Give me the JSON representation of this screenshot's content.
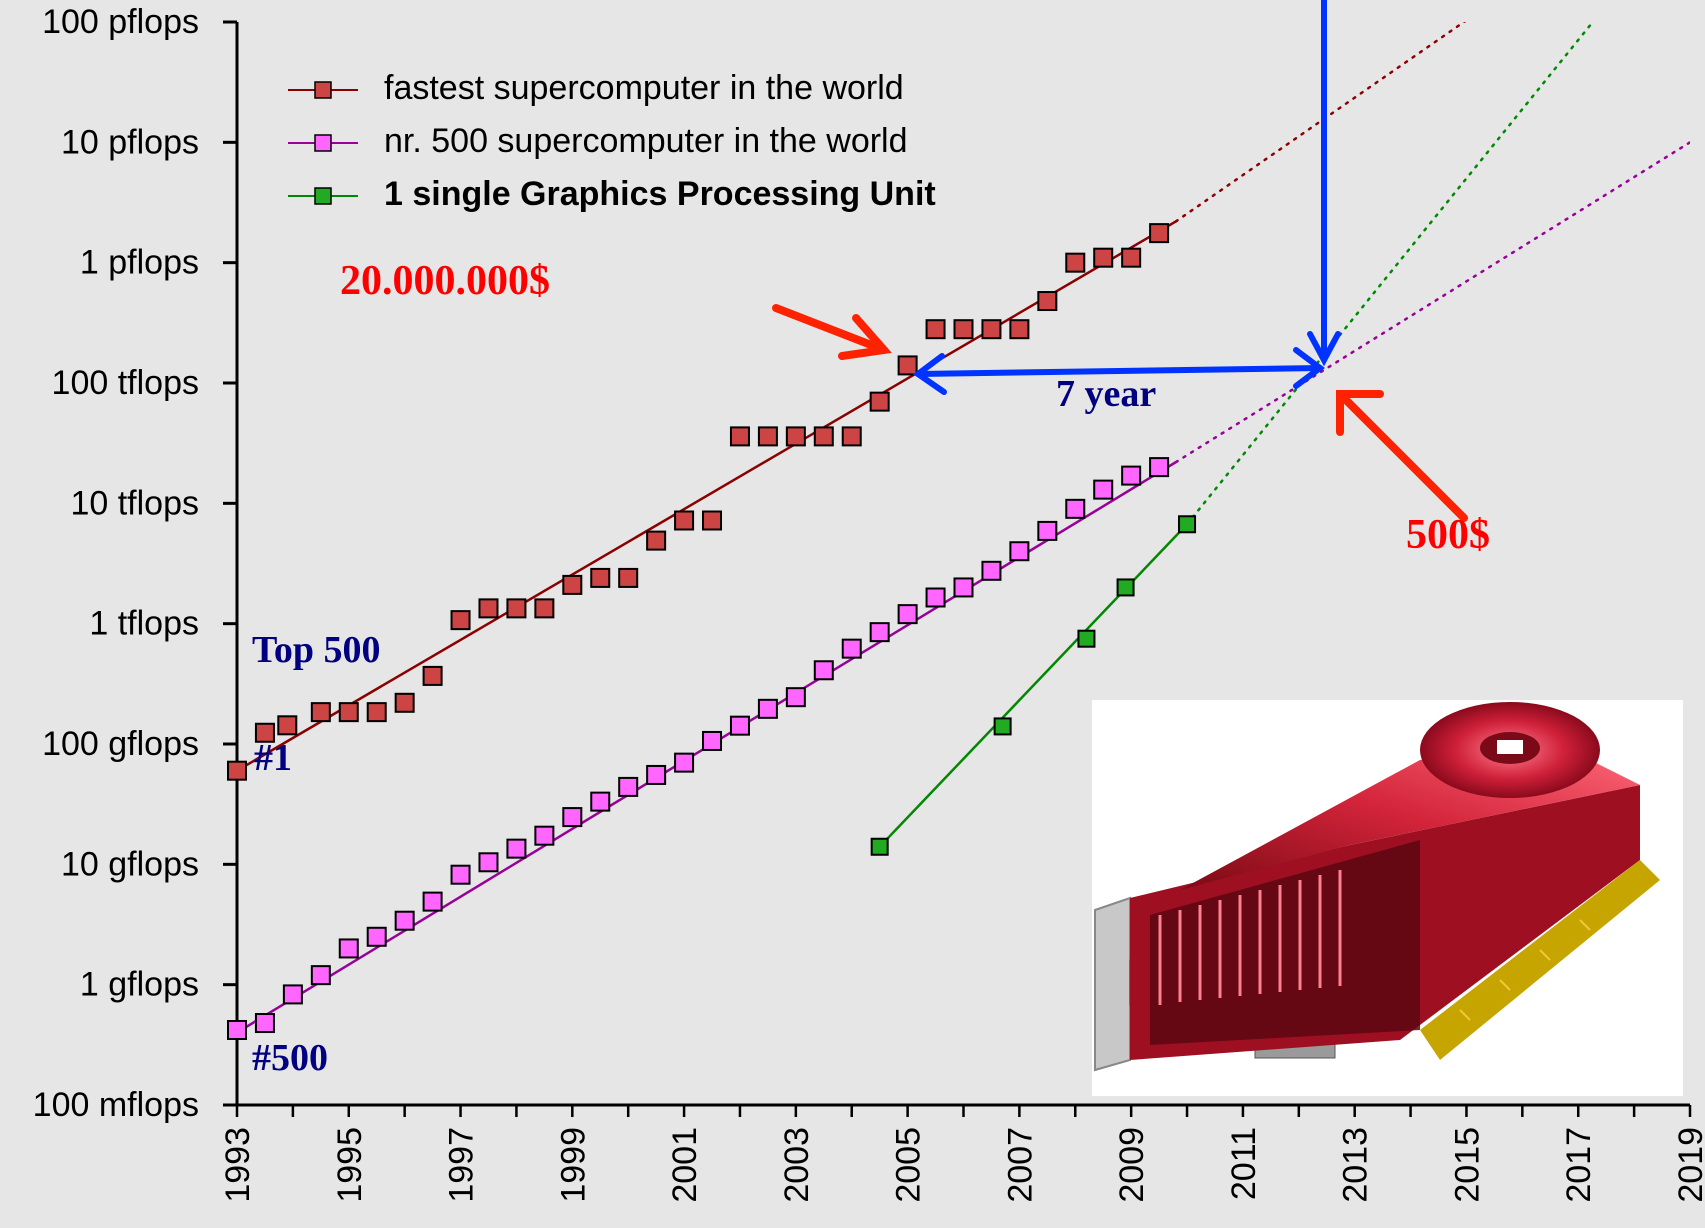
{
  "chart_data": {
    "type": "scatter",
    "title": "",
    "xlabel": "",
    "ylabel": "",
    "y_scale": "log10",
    "y_unit": "flops",
    "xlim": [
      1993,
      2019
    ],
    "ylim": [
      100000000.0,
      1e+17
    ],
    "x_ticks": [
      1993,
      1995,
      1997,
      1999,
      2001,
      2003,
      2005,
      2007,
      2009,
      2011,
      2013,
      2015,
      2017,
      2019
    ],
    "y_ticks": [
      {
        "value": 100000000.0,
        "label": "100 mflops"
      },
      {
        "value": 1000000000.0,
        "label": "1 gflops"
      },
      {
        "value": 10000000000.0,
        "label": "10 gflops"
      },
      {
        "value": 100000000000.0,
        "label": "100 gflops"
      },
      {
        "value": 1000000000000.0,
        "label": "1 tflops"
      },
      {
        "value": 10000000000000.0,
        "label": "10 tflops"
      },
      {
        "value": 100000000000000.0,
        "label": "100 tflops"
      },
      {
        "value": 1000000000000000.0,
        "label": "1 pflops"
      },
      {
        "value": 1e+16,
        "label": "10 pflops"
      },
      {
        "value": 1e+17,
        "label": "100 pflops"
      }
    ],
    "grid": false,
    "legend_position": "top-left",
    "series": [
      {
        "name": "fastest supercomputer in the world",
        "bold": false,
        "line_color": "#8b0000",
        "marker_color": "#cc4444",
        "fit": {
          "x": [
            1993,
            2009.8
          ],
          "y": [
            60000000000.0,
            2200000000000000.0
          ]
        },
        "extrapolation": {
          "x": [
            2009.8,
            2019
          ],
          "y": [
            2200000000000000.0,
            2e+18
          ]
        },
        "points": [
          [
            1993.0,
            60000000000.0
          ],
          [
            1993.5,
            124000000000.0
          ],
          [
            1993.9,
            143000000000.0
          ],
          [
            1994.5,
            184000000000.0
          ],
          [
            1995.0,
            184000000000.0
          ],
          [
            1995.5,
            184000000000.0
          ],
          [
            1996.0,
            220000000000.0
          ],
          [
            1996.5,
            368000000000.0
          ],
          [
            1997.0,
            1070000000000.0
          ],
          [
            1997.5,
            1340000000000.0
          ],
          [
            1998.0,
            1340000000000.0
          ],
          [
            1998.5,
            1340000000000.0
          ],
          [
            1999.0,
            2100000000000.0
          ],
          [
            1999.5,
            2400000000000.0
          ],
          [
            2000.0,
            2400000000000.0
          ],
          [
            2000.5,
            4900000000000.0
          ],
          [
            2001.0,
            7200000000000.0
          ],
          [
            2001.5,
            7200000000000.0
          ],
          [
            2002.0,
            36000000000000.0
          ],
          [
            2002.5,
            36000000000000.0
          ],
          [
            2003.0,
            36000000000000.0
          ],
          [
            2003.5,
            36000000000000.0
          ],
          [
            2004.0,
            36000000000000.0
          ],
          [
            2004.5,
            70000000000000.0
          ],
          [
            2005.0,
            140000000000000.0
          ],
          [
            2005.5,
            280000000000000.0
          ],
          [
            2006.0,
            280000000000000.0
          ],
          [
            2006.5,
            280000000000000.0
          ],
          [
            2007.0,
            280000000000000.0
          ],
          [
            2007.5,
            480000000000000.0
          ],
          [
            2008.0,
            1000000000000000.0
          ],
          [
            2008.5,
            1100000000000000.0
          ],
          [
            2009.0,
            1100000000000000.0
          ],
          [
            2009.5,
            1760000000000000.0
          ]
        ]
      },
      {
        "name": "nr. 500 supercomputer in the world",
        "bold": false,
        "line_color": "#990099",
        "marker_color": "#ff66ff",
        "fit": {
          "x": [
            1993,
            2009.8
          ],
          "y": [
            400000000.0,
            22000000000000.0
          ]
        },
        "extrapolation": {
          "x": [
            2009.8,
            2019
          ],
          "y": [
            22000000000000.0,
            1e+16
          ]
        },
        "points": [
          [
            1993.0,
            420000000.0
          ],
          [
            1993.5,
            480000000.0
          ],
          [
            1994.0,
            830000000.0
          ],
          [
            1994.5,
            1200000000.0
          ],
          [
            1995.0,
            2000000000.0
          ],
          [
            1995.5,
            2500000000.0
          ],
          [
            1996.0,
            3400000000.0
          ],
          [
            1996.5,
            4900000000.0
          ],
          [
            1997.0,
            8200000000.0
          ],
          [
            1997.5,
            10400000000.0
          ],
          [
            1998.0,
            13500000000.0
          ],
          [
            1998.5,
            17300000000.0
          ],
          [
            1999.0,
            24700000000.0
          ],
          [
            1999.5,
            33200000000.0
          ],
          [
            2000.0,
            44000000000.0
          ],
          [
            2000.5,
            55300000000.0
          ],
          [
            2001.0,
            70000000000.0
          ],
          [
            2001.5,
            106000000000.0
          ],
          [
            2002.0,
            142000000000.0
          ],
          [
            2002.5,
            196000000000.0
          ],
          [
            2003.0,
            245000000000.0
          ],
          [
            2003.5,
            410000000000.0
          ],
          [
            2004.0,
            620000000000.0
          ],
          [
            2004.5,
            850000000000.0
          ],
          [
            2005.0,
            1200000000000.0
          ],
          [
            2005.5,
            1650000000000.0
          ],
          [
            2006.0,
            2000000000000.0
          ],
          [
            2006.5,
            2750000000000.0
          ],
          [
            2007.0,
            4000000000000.0
          ],
          [
            2007.5,
            5900000000000.0
          ],
          [
            2008.0,
            9000000000000.0
          ],
          [
            2008.5,
            13000000000000.0
          ],
          [
            2009.0,
            17000000000000.0
          ],
          [
            2009.5,
            20000000000000.0
          ]
        ]
      },
      {
        "name": "1 single Graphics Processing Unit",
        "bold": true,
        "line_color": "#008800",
        "marker_color": "#22aa22",
        "fit": {
          "x": [
            2004.5,
            2010
          ],
          "y": [
            14000000000.0,
            6700000000000.0
          ]
        },
        "extrapolation": {
          "x": [
            2010,
            2019
          ],
          "y": [
            6700000000000.0,
            1e+18
          ]
        },
        "points": [
          [
            2004.5,
            14000000000.0
          ],
          [
            2006.7,
            140000000000.0
          ],
          [
            2008.2,
            750000000000.0
          ],
          [
            2008.9,
            2000000000000.0
          ],
          [
            2010.0,
            6700000000000.0
          ]
        ]
      }
    ],
    "annotations": [
      {
        "text": "20.000.000$",
        "color": "#ff0000",
        "bold": true
      },
      {
        "text": "500$",
        "color": "#ff0000",
        "bold": true
      },
      {
        "text": "7 year",
        "color": "#000080",
        "bold": true
      },
      {
        "text": "Top 500",
        "color": "#000080",
        "bold": true
      },
      {
        "text": "#1",
        "color": "#000080",
        "bold": true
      },
      {
        "text": "#500",
        "color": "#000080",
        "bold": true
      }
    ],
    "image": {
      "icon": "graphics-card-photo"
    }
  },
  "colors": {
    "background": "#e6e6e6",
    "axis": "#000000",
    "arrow_blue": "#0033ff",
    "arrow_red": "#ff2200"
  }
}
